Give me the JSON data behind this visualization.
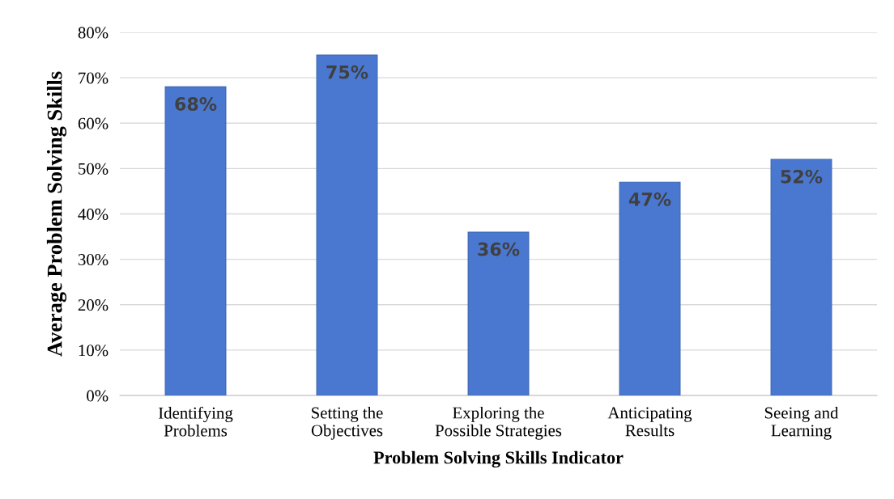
{
  "chart_data": {
    "type": "bar",
    "xlabel": "Problem Solving Skills Indicator",
    "ylabel": "Average Problem Solving Skills",
    "categories": [
      "Identifying\nProblems",
      "Setting the\nObjectives",
      "Exploring the\nPossible Strategies",
      "Anticipating\nResults",
      "Seeing and\nLearning"
    ],
    "values": [
      68,
      75,
      36,
      47,
      52
    ],
    "value_labels": [
      "68%",
      "75%",
      "36%",
      "47%",
      "52%"
    ],
    "color": "#4a78d0",
    "ylim": [
      0,
      80
    ],
    "yticks": [
      {
        "value": 0,
        "label": "0%"
      },
      {
        "value": 10,
        "label": "10%"
      },
      {
        "value": 20,
        "label": "20%"
      },
      {
        "value": 30,
        "label": "30%"
      },
      {
        "value": 40,
        "label": "40%"
      },
      {
        "value": 50,
        "label": "50%"
      },
      {
        "value": 60,
        "label": "60%"
      },
      {
        "value": 70,
        "label": "70%"
      },
      {
        "value": 80,
        "label": "80%"
      }
    ],
    "grid": "y",
    "legend": false
  }
}
